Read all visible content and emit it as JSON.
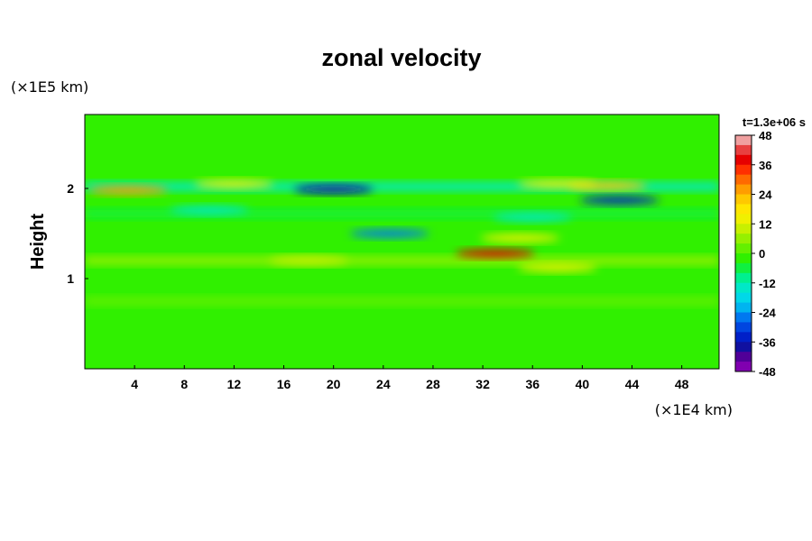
{
  "chart_data": {
    "type": "heatmap",
    "title": "zonal velocity",
    "ylabel": "Height",
    "y_unit": "(×1E5 km)",
    "x_unit": "(×1E4 km)",
    "time_label": "t=1.3e+06 s",
    "xlim": [
      0,
      51
    ],
    "ylim": [
      0,
      2.82
    ],
    "x_ticks": [
      4,
      8,
      12,
      16,
      20,
      24,
      28,
      32,
      36,
      40,
      44,
      48
    ],
    "x_tick_labels": [
      "4",
      "8",
      "12",
      "16",
      "20",
      "24",
      "28",
      "32",
      "36",
      "40",
      "44",
      "48"
    ],
    "y_ticks": [
      1,
      2
    ],
    "y_tick_labels": [
      "1",
      "2"
    ],
    "colorbar": {
      "range": [
        -48,
        48
      ],
      "ticks": [
        48,
        36,
        24,
        12,
        0,
        -12,
        -24,
        -36,
        -48
      ],
      "tick_labels": [
        "48",
        "36",
        "24",
        "12",
        "0",
        "-12",
        "-24",
        "-36",
        "-48"
      ],
      "colors": [
        "#f0a0a0",
        "#e84040",
        "#e60000",
        "#ff3000",
        "#ff6a00",
        "#ff9d00",
        "#ffc800",
        "#ffe600",
        "#f0f000",
        "#c8f000",
        "#96f000",
        "#64f000",
        "#30f000",
        "#10f040",
        "#00f090",
        "#00e8c8",
        "#00d8e8",
        "#00b4f0",
        "#0078f0",
        "#0046e0",
        "#0020c8",
        "#1010a0",
        "#500098",
        "#8000b0"
      ]
    },
    "features": [
      {
        "kind": "band",
        "x": [
          0,
          51
        ],
        "y": 2.02,
        "value": -14
      },
      {
        "kind": "band",
        "x": [
          0,
          51
        ],
        "y": 1.72,
        "value": -5
      },
      {
        "kind": "band",
        "x": [
          0,
          51
        ],
        "y": 1.2,
        "value": 6
      },
      {
        "kind": "band",
        "x": [
          0,
          51
        ],
        "y": 0.75,
        "value": 3
      },
      {
        "kind": "blob",
        "x": 3.5,
        "y": 1.98,
        "value": 26
      },
      {
        "kind": "blob",
        "x": 20,
        "y": 1.99,
        "value": -38
      },
      {
        "kind": "blob",
        "x": 12,
        "y": 2.05,
        "value": 14
      },
      {
        "kind": "blob",
        "x": 42,
        "y": 2.03,
        "value": 24
      },
      {
        "kind": "blob",
        "x": 38,
        "y": 2.05,
        "value": 14
      },
      {
        "kind": "blob",
        "x": 43,
        "y": 1.87,
        "value": -34
      },
      {
        "kind": "blob",
        "x": 36,
        "y": 1.68,
        "value": -14
      },
      {
        "kind": "blob",
        "x": 33,
        "y": 1.28,
        "value": 38
      },
      {
        "kind": "blob",
        "x": 24.5,
        "y": 1.5,
        "value": -24
      },
      {
        "kind": "blob",
        "x": 35,
        "y": 1.45,
        "value": 14
      },
      {
        "kind": "blob",
        "x": 38,
        "y": 1.12,
        "value": 16
      },
      {
        "kind": "blob",
        "x": 18,
        "y": 1.2,
        "value": 10
      },
      {
        "kind": "blob",
        "x": 10,
        "y": 1.76,
        "value": -14
      }
    ]
  }
}
